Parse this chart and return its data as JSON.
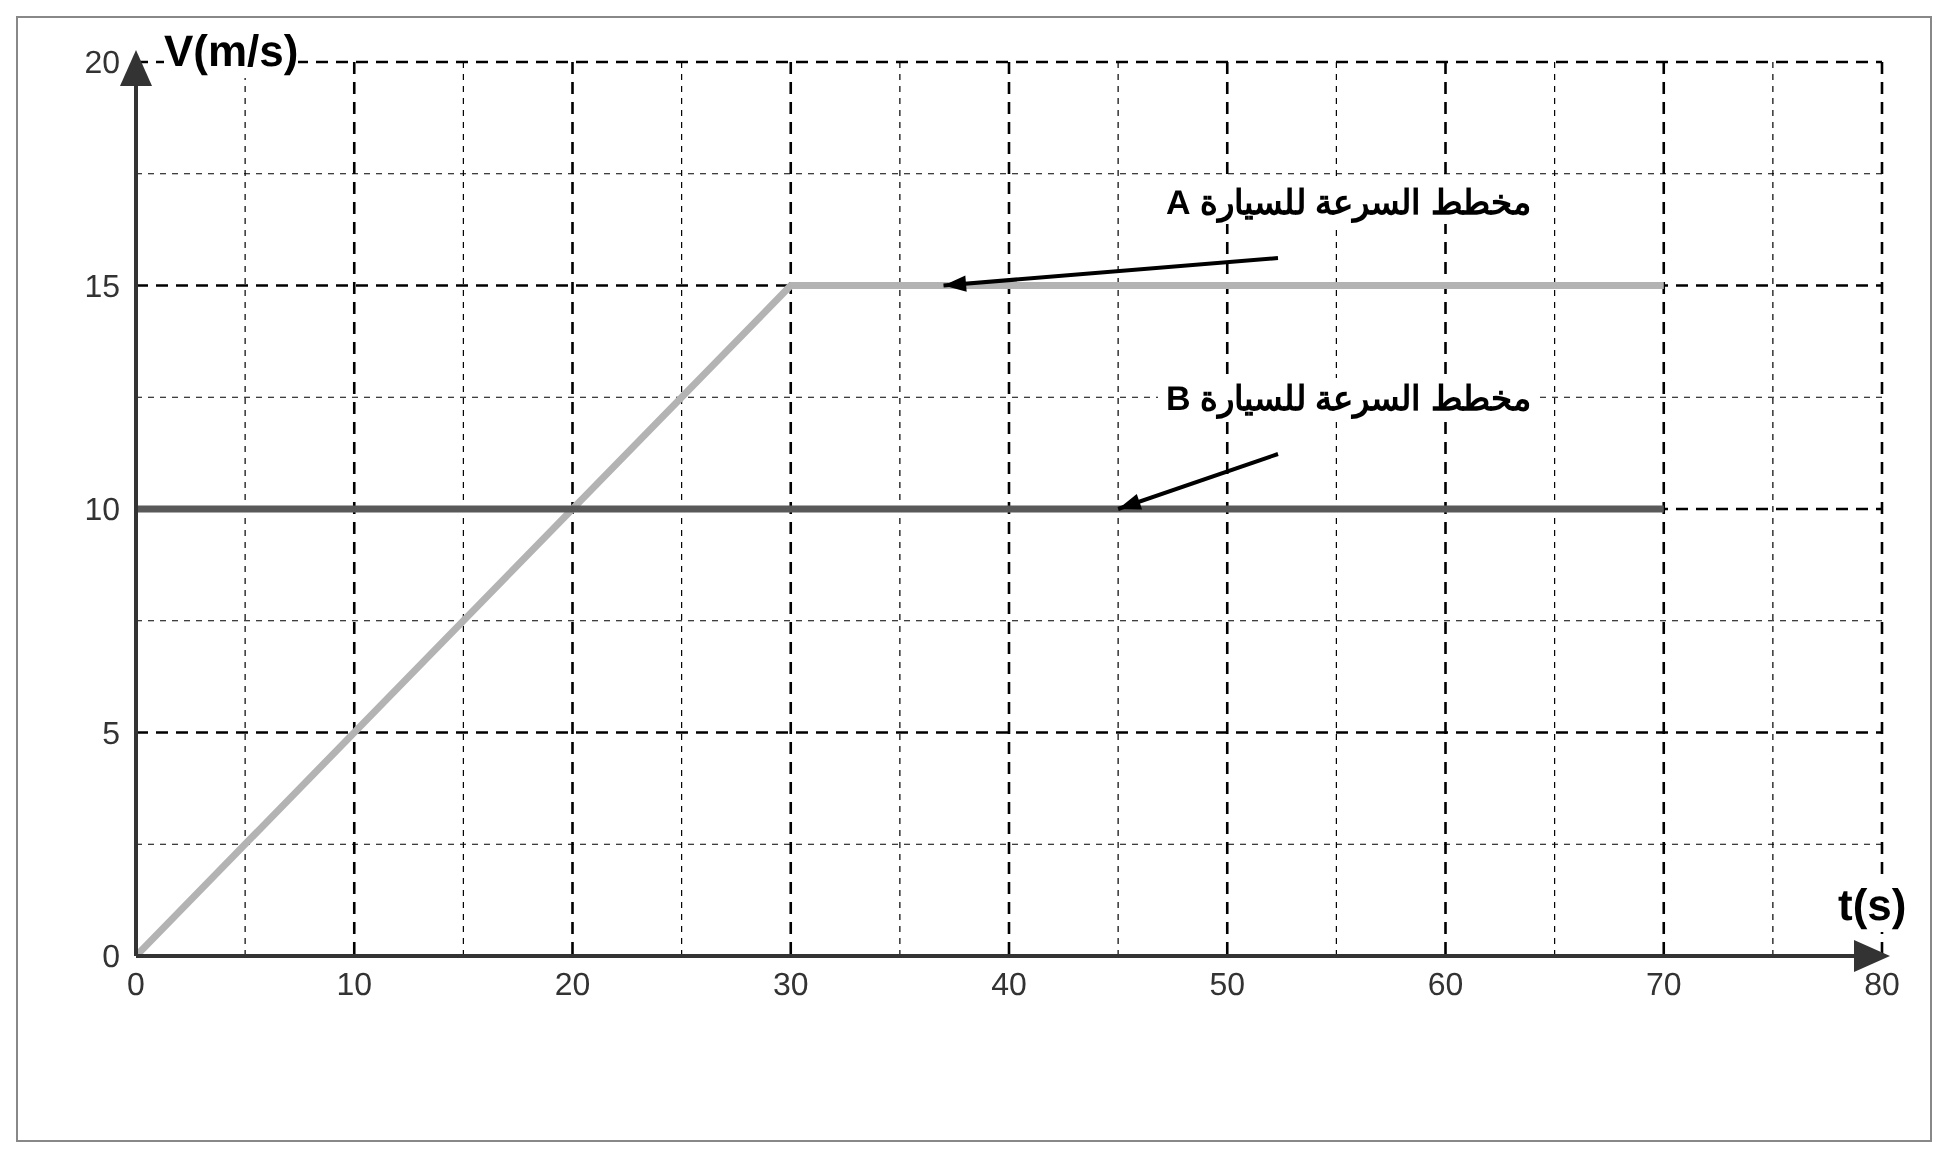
{
  "chart_data": {
    "type": "line",
    "xlabel": "t(s)",
    "ylabel": "V(m/s)",
    "xlim": [
      0,
      80
    ],
    "xticks": [
      0,
      10,
      20,
      30,
      40,
      50,
      60,
      70,
      80
    ],
    "ylim": [
      0,
      20
    ],
    "yticks": [
      0,
      5,
      10,
      15,
      20
    ],
    "grid": true,
    "marker": "none",
    "line_style": "solid",
    "series": [
      {
        "name": "مخطط السرعة للسيارة A",
        "color": "#b3b3b3",
        "x": [
          0,
          30,
          70
        ],
        "values": [
          0,
          15,
          15
        ]
      },
      {
        "name": "مخطط السرعة للسيارة B",
        "color": "#595959",
        "x": [
          0,
          70
        ],
        "values": [
          10,
          10
        ]
      }
    ]
  }
}
